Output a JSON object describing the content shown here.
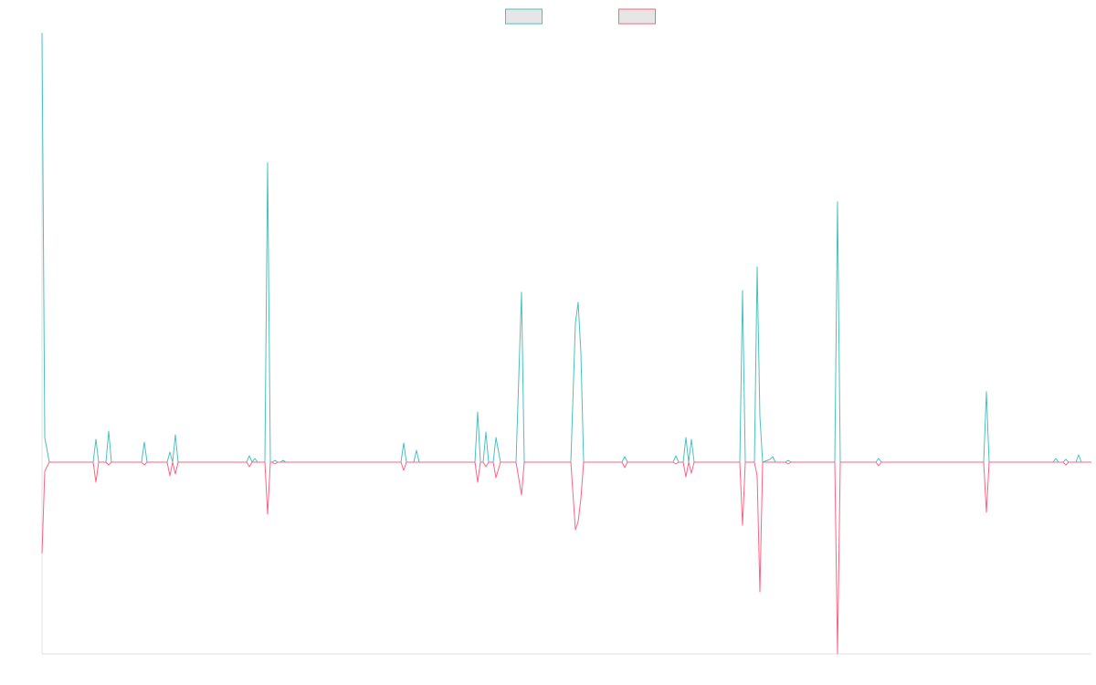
{
  "chart_data": {
    "type": "line",
    "legend": "top",
    "grid": false,
    "xlim": [
      0,
      1149
    ],
    "ylim": [
      -21,
      47
    ],
    "x": [
      0,
      3,
      8,
      56,
      59,
      62,
      70,
      73,
      76,
      109,
      112,
      115,
      137,
      140,
      143,
      146,
      149,
      224,
      227,
      230,
      233,
      236,
      244,
      247,
      250,
      252,
      255,
      258,
      261,
      264,
      267,
      393,
      396,
      399,
      407,
      410,
      413,
      474,
      477,
      480,
      483,
      486,
      489,
      494,
      497,
      502,
      519,
      525,
      528,
      579,
      584,
      587,
      590,
      593,
      635,
      638,
      641,
      691,
      694,
      697,
      702,
      705,
      708,
      711,
      714,
      764,
      767,
      770,
      780,
      783,
      786,
      789,
      797,
      800,
      803,
      814,
      817,
      820,
      868,
      871,
      874,
      913,
      916,
      919,
      1031,
      1034,
      1037,
      1107,
      1110,
      1113,
      1118,
      1121,
      1124,
      1132,
      1135,
      1138,
      1149
    ],
    "series": [
      {
        "color": "#4bc0c0",
        "values": [
          47,
          2.7,
          0,
          0,
          2.5,
          0,
          0,
          3.4,
          0,
          0,
          2.2,
          0,
          0,
          1.1,
          0,
          3.0,
          0,
          0,
          0.7,
          0,
          0.4,
          0,
          0,
          32.8,
          0,
          0,
          0.2,
          0,
          0,
          0.2,
          0,
          0,
          2.1,
          0,
          0,
          1.3,
          0,
          0,
          5.5,
          0,
          0,
          3.3,
          0,
          0,
          2.7,
          0,
          0,
          18.6,
          0,
          0,
          15.2,
          17.5,
          12,
          0,
          0,
          0.6,
          0,
          0,
          0.7,
          0,
          0,
          2.7,
          0,
          2.5,
          0,
          0,
          18.8,
          0,
          0,
          21.4,
          5,
          0,
          0.3,
          0.6,
          0,
          0,
          0.2,
          0,
          0,
          28.5,
          0,
          0,
          0.4,
          0,
          0,
          7.7,
          0,
          0,
          0.4,
          0,
          0,
          0.3,
          0,
          0,
          0.8,
          0,
          0
        ]
      },
      {
        "color": "#ff6384",
        "values": [
          -10,
          -1,
          0,
          0,
          -2.2,
          0,
          0,
          -0.3,
          0,
          0,
          -0.3,
          0,
          0,
          -1.5,
          0,
          -1.3,
          0,
          0,
          -0.5,
          0,
          0,
          0,
          0,
          -5.7,
          0,
          0,
          -0.2,
          0,
          0,
          0,
          0,
          0,
          -0.9,
          0,
          0,
          0,
          0,
          0,
          -2.2,
          0,
          0,
          -0.5,
          0,
          0,
          -1.7,
          0,
          0,
          -3.6,
          0,
          0,
          -7.4,
          -6.5,
          -4,
          0,
          0,
          -0.6,
          0,
          0,
          -0.2,
          0,
          0,
          -1.6,
          0,
          -1.2,
          0,
          0,
          -6.9,
          0,
          0,
          -1.5,
          -14.2,
          0,
          0,
          0,
          0,
          0,
          -0.2,
          0,
          0,
          -21,
          0,
          0,
          -0.4,
          0,
          0,
          -5.5,
          0,
          0,
          0,
          0,
          0,
          -0.3,
          0,
          0,
          0,
          0,
          0
        ]
      }
    ]
  }
}
